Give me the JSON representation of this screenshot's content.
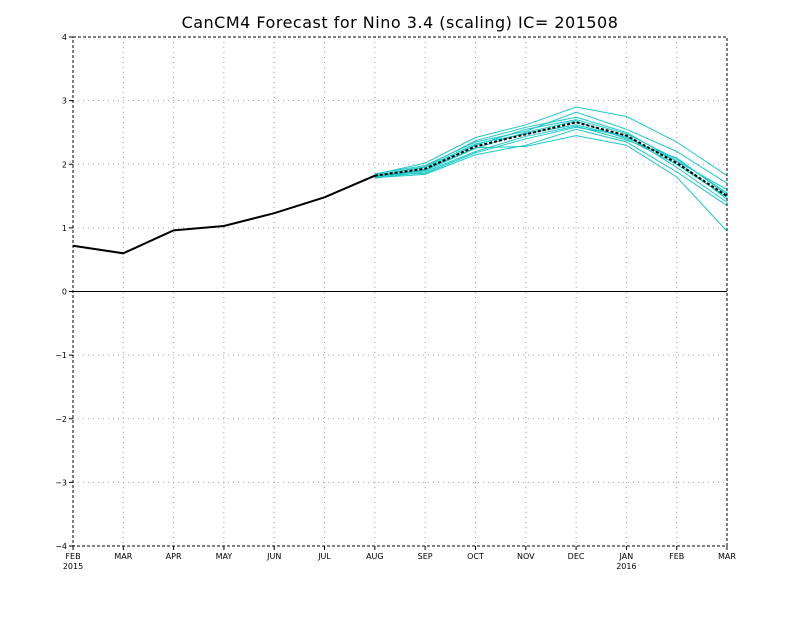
{
  "chart_data": {
    "type": "line",
    "title": "CanCM4 Forecast for Nino 3.4 (scaling)  IC= 201508",
    "xlabel": "",
    "ylabel": "",
    "categories": [
      "FEB",
      "MAR",
      "APR",
      "MAY",
      "JUN",
      "JUL",
      "AUG",
      "SEP",
      "OCT",
      "NOV",
      "DEC",
      "JAN",
      "FEB",
      "MAR"
    ],
    "year_labels": [
      {
        "index": 0,
        "label": "2015"
      },
      {
        "index": 11,
        "label": "2016"
      }
    ],
    "ylim": [
      -4,
      4
    ],
    "yticks": [
      -4,
      -3,
      -2,
      -1,
      0,
      1,
      2,
      3,
      4
    ],
    "grid": true,
    "colors": {
      "observed": "#000000",
      "members": "#1ec8c8",
      "ensemble_mean": "#000000",
      "grid": "#a0a0a0"
    },
    "observed": {
      "start_index": 0,
      "values": [
        0.72,
        0.6,
        0.96,
        1.03,
        1.23,
        1.48,
        1.82
      ]
    },
    "ensemble_mean": {
      "start_index": 6,
      "style": "dashed",
      "values": [
        1.82,
        1.93,
        2.28,
        2.47,
        2.66,
        2.45,
        2.02,
        1.5
      ]
    },
    "members": [
      {
        "start_index": 6,
        "values": [
          1.84,
          2.02,
          2.42,
          2.62,
          2.9,
          2.75,
          2.35,
          1.82
        ]
      },
      {
        "start_index": 6,
        "values": [
          1.85,
          1.98,
          2.35,
          2.52,
          2.82,
          2.55,
          2.2,
          1.7
        ]
      },
      {
        "start_index": 6,
        "values": [
          1.83,
          1.96,
          2.37,
          2.58,
          2.74,
          2.5,
          2.05,
          1.6
        ]
      },
      {
        "start_index": 6,
        "values": [
          1.81,
          1.92,
          2.3,
          2.55,
          2.7,
          2.48,
          2.08,
          1.55
        ]
      },
      {
        "start_index": 6,
        "values": [
          1.8,
          1.9,
          2.25,
          2.5,
          2.68,
          2.4,
          2.0,
          1.48
        ]
      },
      {
        "start_index": 6,
        "values": [
          1.78,
          1.88,
          2.2,
          2.44,
          2.6,
          2.38,
          2.1,
          1.52
        ]
      },
      {
        "start_index": 6,
        "values": [
          1.82,
          1.86,
          2.18,
          2.4,
          2.58,
          2.45,
          1.95,
          1.4
        ]
      },
      {
        "start_index": 6,
        "values": [
          1.79,
          1.84,
          2.15,
          2.3,
          2.55,
          2.35,
          1.88,
          1.35
        ]
      },
      {
        "start_index": 6,
        "values": [
          1.8,
          1.91,
          2.26,
          2.28,
          2.45,
          2.3,
          1.8,
          0.95
        ]
      },
      {
        "start_index": 6,
        "values": [
          1.83,
          1.95,
          2.32,
          2.48,
          2.62,
          2.42,
          2.05,
          1.45
        ]
      }
    ]
  }
}
